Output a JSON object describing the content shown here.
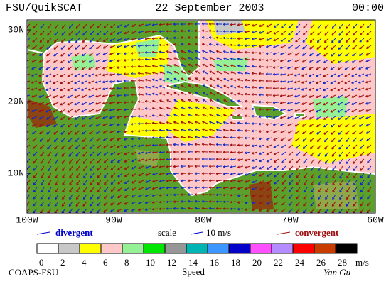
{
  "header": {
    "left": "FSU/QuikSCAT",
    "date": "22 September 2003",
    "time": "00:00"
  },
  "lat_labels": [
    "30N",
    "20N",
    "10N"
  ],
  "lon_labels": [
    "100W",
    "90W",
    "80W",
    "70W",
    "60W"
  ],
  "legend": {
    "divergent": "divergent",
    "scale": "scale",
    "scale_value": "10 m/s",
    "convergent": "convergent"
  },
  "colorbar": {
    "labels": [
      "0",
      "2",
      "4",
      "6",
      "8",
      "10",
      "12",
      "14",
      "16",
      "18",
      "20",
      "22",
      "24",
      "26",
      "28"
    ],
    "colors": [
      "#ffffff",
      "#c8c8c8",
      "#ffff00",
      "#ffc8c8",
      "#96f096",
      "#00e600",
      "#969696",
      "#00b4b4",
      "#3c96ff",
      "#0000c8",
      "#ff50ff",
      "#b48cff",
      "#ff0000",
      "#c83c00",
      "#000000"
    ],
    "unit": "m/s",
    "title": "Speed"
  },
  "footer": {
    "left": "COAPS-FSU",
    "right": "Yan Gu"
  }
}
